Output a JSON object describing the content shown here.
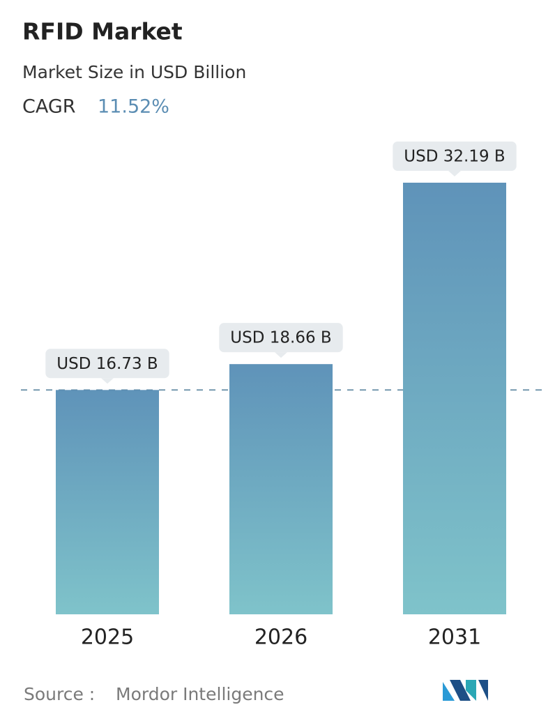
{
  "chart_data": {
    "type": "bar",
    "title": "RFID Market",
    "subtitle": "Market Size in USD Billion",
    "cagr_label": "CAGR",
    "cagr": "11.52%",
    "categories": [
      "2025",
      "2026",
      "2031"
    ],
    "values": [
      16.73,
      18.66,
      32.19
    ],
    "value_labels": [
      "USD 16.73 B",
      "USD 18.66 B",
      "USD 32.19 B"
    ],
    "color": "#6a9fbf",
    "source_label": "Source :",
    "source": "Mordor Intelligence"
  }
}
